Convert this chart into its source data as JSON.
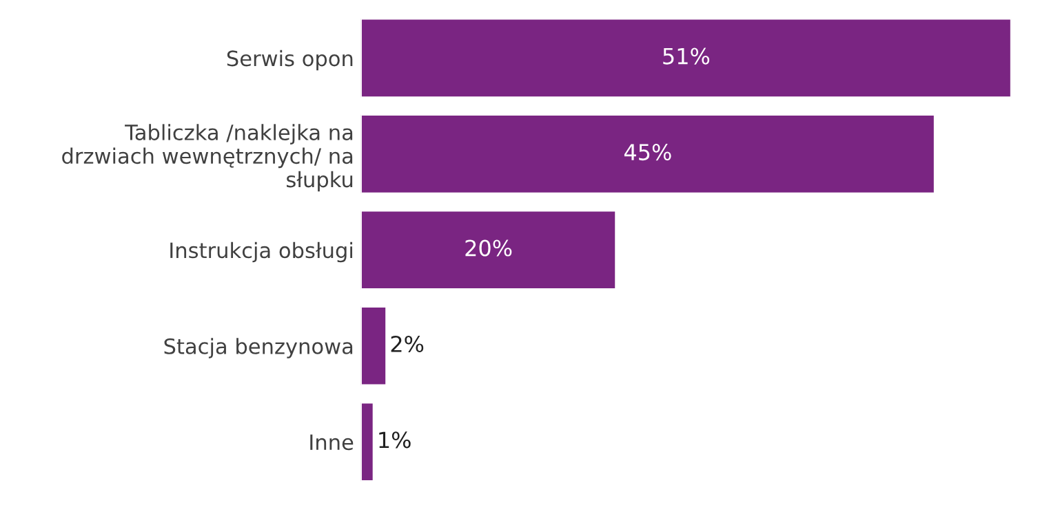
{
  "chart_data": {
    "type": "bar",
    "orientation": "horizontal",
    "categories": [
      "Serwis opon",
      "Tabliczka /naklejka na\ndrzwiach wewnętrznych/ na\nsłupku",
      "Instrukcja obsługi",
      "Stacja benzynowa",
      "Inne"
    ],
    "values": [
      51,
      45,
      20,
      2,
      1
    ],
    "value_labels": [
      "51%",
      "45%",
      "20%",
      "2%",
      "1%"
    ],
    "color": "#7a2582",
    "grid": false,
    "legend": false
  }
}
